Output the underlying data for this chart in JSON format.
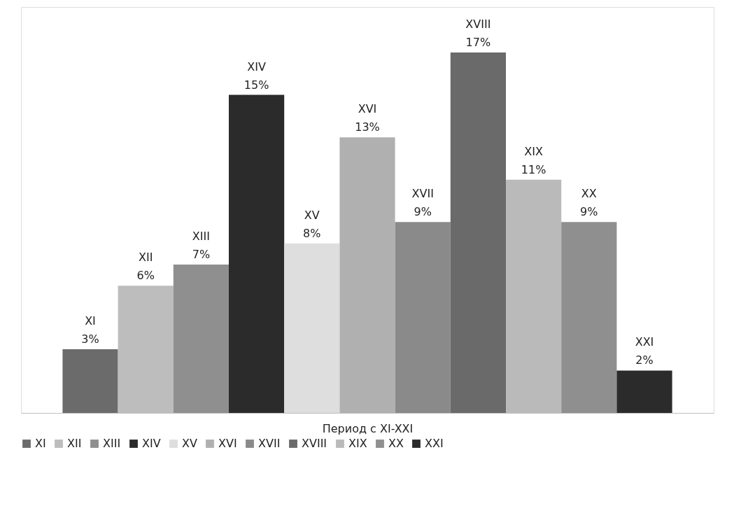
{
  "chart_data": {
    "type": "bar",
    "xlabel": "Период с XI-XXI",
    "stacked": true,
    "categories": [
      null,
      null,
      null,
      null,
      null,
      null,
      null,
      null,
      null,
      null,
      null
    ],
    "series": [
      {
        "name": "XI",
        "color": "#6b6b6b",
        "values": [
          3,
          0,
          0,
          0,
          0,
          0,
          0,
          0,
          0,
          0,
          0
        ],
        "value_labels": [
          "3%",
          null,
          null,
          null,
          null,
          null,
          null,
          null,
          null,
          null,
          null
        ]
      },
      {
        "name": "XII",
        "color": "#bdbdbd",
        "values": [
          0,
          6,
          0,
          0,
          0,
          0,
          0,
          0,
          0,
          0,
          0
        ],
        "value_labels": [
          null,
          "6%",
          null,
          null,
          null,
          null,
          null,
          null,
          null,
          null,
          null
        ]
      },
      {
        "name": "XIII",
        "color": "#8f8f8f",
        "values": [
          0,
          0,
          7,
          0,
          0,
          0,
          0,
          0,
          0,
          0,
          0
        ],
        "value_labels": [
          null,
          null,
          "7%",
          null,
          null,
          null,
          null,
          null,
          null,
          null,
          null
        ]
      },
      {
        "name": "XIV",
        "color": "#2b2b2b",
        "values": [
          0,
          0,
          0,
          15,
          0,
          0,
          0,
          0,
          0,
          0,
          0
        ],
        "value_labels": [
          null,
          null,
          null,
          "15%",
          null,
          null,
          null,
          null,
          null,
          null,
          null
        ]
      },
      {
        "name": "XV",
        "color": "#dedede",
        "values": [
          0,
          0,
          0,
          0,
          8,
          0,
          0,
          0,
          0,
          0,
          0
        ],
        "value_labels": [
          null,
          null,
          null,
          null,
          "8%",
          null,
          null,
          null,
          null,
          null,
          null
        ]
      },
      {
        "name": "XVI",
        "color": "#b0b0b0",
        "values": [
          0,
          0,
          0,
          0,
          0,
          13,
          0,
          0,
          0,
          0,
          0
        ],
        "value_labels": [
          null,
          null,
          null,
          null,
          null,
          "13%",
          null,
          null,
          null,
          null,
          null
        ]
      },
      {
        "name": "XVII",
        "color": "#8a8a8a",
        "values": [
          0,
          0,
          0,
          0,
          0,
          0,
          9,
          0,
          0,
          0,
          0
        ],
        "value_labels": [
          null,
          null,
          null,
          null,
          null,
          null,
          "9%",
          null,
          null,
          null,
          null
        ]
      },
      {
        "name": "XVIII",
        "color": "#6a6a6a",
        "values": [
          0,
          0,
          0,
          0,
          0,
          0,
          0,
          17,
          0,
          0,
          0
        ],
        "value_labels": [
          null,
          null,
          null,
          null,
          null,
          null,
          null,
          "17%",
          null,
          null,
          null
        ]
      },
      {
        "name": "XIX",
        "color": "#bababa",
        "values": [
          0,
          0,
          0,
          0,
          0,
          0,
          0,
          0,
          11,
          0,
          0
        ],
        "value_labels": [
          null,
          null,
          null,
          null,
          null,
          null,
          null,
          null,
          "11%",
          null,
          null
        ]
      },
      {
        "name": "XX",
        "color": "#8f8f8f",
        "values": [
          0,
          0,
          0,
          0,
          0,
          0,
          0,
          0,
          0,
          9,
          0
        ],
        "value_labels": [
          null,
          null,
          null,
          null,
          null,
          null,
          null,
          null,
          null,
          "9%",
          null
        ]
      },
      {
        "name": "XXI",
        "color": "#2b2b2b",
        "values": [
          0,
          0,
          0,
          0,
          0,
          0,
          0,
          0,
          0,
          0,
          2
        ],
        "value_labels": [
          null,
          null,
          null,
          null,
          null,
          null,
          null,
          null,
          null,
          null,
          "2%"
        ]
      }
    ],
    "legend": "bottom",
    "tick_labels": false,
    "grid": false
  }
}
